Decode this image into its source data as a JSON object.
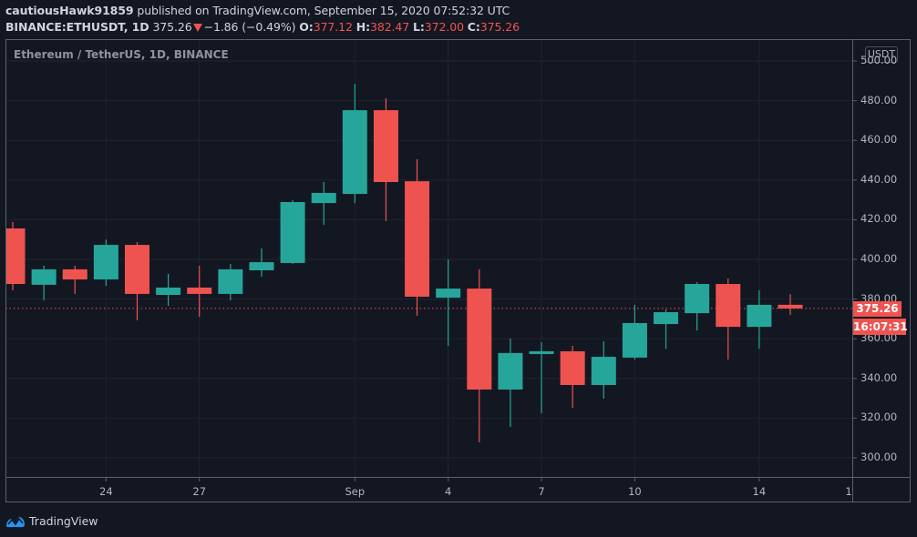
{
  "header": {
    "publisher": "cautiousHawk91859",
    "published_text": "published on TradingView.com, September 15, 2020 07:52:32 UTC",
    "symbol": "BINANCE:ETHUSDT, 1D",
    "last": "375.26",
    "change": "−1.86 (−0.49%)",
    "o_label": "O:",
    "o": "377.12",
    "h_label": "H:",
    "h": "382.47",
    "l_label": "L:",
    "l": "372.00",
    "c_label": "C:",
    "c": "375.26"
  },
  "legend_title": "Ethereum / TetherUS, 1D, BINANCE",
  "currency_badge": "USDT",
  "price_tag": "375.26",
  "countdown": "16:07:31",
  "brand": "TradingView",
  "colors": {
    "background": "#131722",
    "up": "#26a69a",
    "down": "#ef5350",
    "grid": "#1f2430",
    "axis": "#5d606b",
    "text": "#b2b5be"
  },
  "chart_data": {
    "type": "candlestick",
    "title": "Ethereum / TetherUS, 1D, BINANCE",
    "symbol": "BINANCE:ETHUSDT",
    "interval": "1D",
    "ylabel": "USDT",
    "ylim": [
      292,
      505
    ],
    "y_ticks": [
      300,
      320,
      340,
      360,
      380,
      400,
      420,
      440,
      460,
      480,
      500
    ],
    "y_tick_labels": [
      "300.00",
      "320.00",
      "340.00",
      "360.00",
      "380.00",
      "400.00",
      "420.00",
      "440.00",
      "460.00",
      "480.00",
      "500.00"
    ],
    "x_tick_labels": [
      {
        "label": "24",
        "index": 3
      },
      {
        "label": "27",
        "index": 6
      },
      {
        "label": "Sep",
        "index": 11
      },
      {
        "label": "4",
        "index": 14
      },
      {
        "label": "7",
        "index": 17
      },
      {
        "label": "10",
        "index": 20
      },
      {
        "label": "14",
        "index": 24
      },
      {
        "label": "1",
        "index": 27
      }
    ],
    "grid": true,
    "last_price": 375.26,
    "candles": [
      {
        "date": "Aug 21",
        "o": 415.6,
        "h": 418.8,
        "l": 384.4,
        "c": 387.6
      },
      {
        "date": "Aug 22",
        "o": 387.2,
        "h": 396.8,
        "l": 379.4,
        "c": 395.0
      },
      {
        "date": "Aug 23",
        "o": 395.0,
        "h": 396.8,
        "l": 382.6,
        "c": 389.9
      },
      {
        "date": "Aug 24",
        "o": 389.9,
        "h": 410.0,
        "l": 386.7,
        "c": 407.3
      },
      {
        "date": "Aug 25",
        "o": 407.3,
        "h": 408.7,
        "l": 369.3,
        "c": 382.6
      },
      {
        "date": "Aug 26",
        "o": 382.1,
        "h": 392.7,
        "l": 376.6,
        "c": 385.8
      },
      {
        "date": "Aug 27",
        "o": 385.8,
        "h": 396.8,
        "l": 371.1,
        "c": 382.6
      },
      {
        "date": "Aug 28",
        "o": 382.6,
        "h": 397.7,
        "l": 379.4,
        "c": 395.0
      },
      {
        "date": "Aug 29",
        "o": 394.5,
        "h": 405.5,
        "l": 391.3,
        "c": 398.6
      },
      {
        "date": "Aug 30",
        "o": 398.2,
        "h": 429.8,
        "l": 397.7,
        "c": 428.9
      },
      {
        "date": "Aug 31",
        "o": 428.4,
        "h": 439.0,
        "l": 417.4,
        "c": 433.5
      },
      {
        "date": "Sep 1",
        "o": 433.0,
        "h": 488.5,
        "l": 428.4,
        "c": 475.2
      },
      {
        "date": "Sep 2",
        "o": 475.2,
        "h": 481.2,
        "l": 419.3,
        "c": 439.0
      },
      {
        "date": "Sep 3",
        "o": 439.4,
        "h": 450.5,
        "l": 371.6,
        "c": 381.2
      },
      {
        "date": "Sep 4",
        "o": 380.7,
        "h": 400.0,
        "l": 356.4,
        "c": 385.3
      },
      {
        "date": "Sep 5",
        "o": 385.3,
        "h": 395.0,
        "l": 307.8,
        "c": 334.4
      },
      {
        "date": "Sep 6",
        "o": 334.4,
        "h": 360.1,
        "l": 315.6,
        "c": 352.8
      },
      {
        "date": "Sep 7",
        "o": 352.3,
        "h": 358.3,
        "l": 322.5,
        "c": 353.7
      },
      {
        "date": "Sep 8",
        "o": 353.7,
        "h": 356.4,
        "l": 325.2,
        "c": 336.7
      },
      {
        "date": "Sep 9",
        "o": 336.7,
        "h": 358.7,
        "l": 329.8,
        "c": 350.9
      },
      {
        "date": "Sep 10",
        "o": 350.5,
        "h": 377.1,
        "l": 349.5,
        "c": 367.9
      },
      {
        "date": "Sep 11",
        "o": 367.4,
        "h": 374.8,
        "l": 355.0,
        "c": 373.4
      },
      {
        "date": "Sep 12",
        "o": 372.9,
        "h": 388.5,
        "l": 364.2,
        "c": 387.6
      },
      {
        "date": "Sep 13",
        "o": 387.6,
        "h": 390.4,
        "l": 349.5,
        "c": 366.0
      },
      {
        "date": "Sep 14",
        "o": 366.0,
        "h": 384.4,
        "l": 355.0,
        "c": 377.1
      },
      {
        "date": "Sep 15",
        "o": 377.12,
        "h": 382.47,
        "l": 372.0,
        "c": 375.26
      }
    ]
  }
}
